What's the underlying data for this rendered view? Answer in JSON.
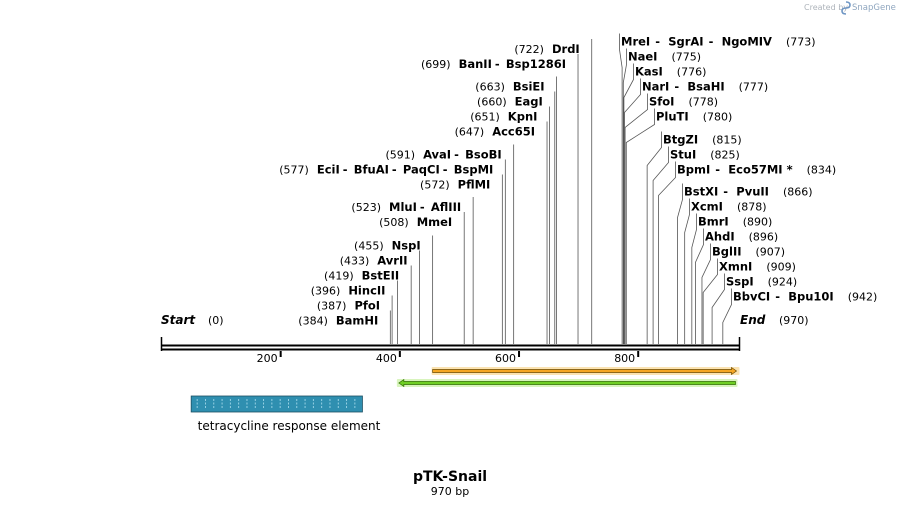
{
  "app": {
    "watermark": "Created by",
    "brand": "SnapGene",
    "brand_icon": "snapgene-logo-icon"
  },
  "plasmid": {
    "name": "pTK-Snail",
    "size_label": "970 bp",
    "length": 970
  },
  "ends": {
    "start": {
      "label": "Start",
      "pos_text": "(0)"
    },
    "end": {
      "label": "End",
      "pos_text": "(970)"
    }
  },
  "axis": {
    "ticks": [
      {
        "value": 200,
        "label": "200"
      },
      {
        "value": 400,
        "label": "400"
      },
      {
        "value": 600,
        "label": "600"
      },
      {
        "value": 800,
        "label": "800"
      }
    ]
  },
  "sites_left": [
    {
      "pos_text": "(384)",
      "names": [
        "BamHI"
      ],
      "cut": 384
    },
    {
      "pos_text": "(387)",
      "names": [
        "PfoI"
      ],
      "cut": 387
    },
    {
      "pos_text": "(396)",
      "names": [
        "HincII"
      ],
      "cut": 396
    },
    {
      "pos_text": "(419)",
      "names": [
        "BstEII"
      ],
      "cut": 419
    },
    {
      "pos_text": "(433)",
      "names": [
        "AvrII"
      ],
      "cut": 433
    },
    {
      "pos_text": "(455)",
      "names": [
        "NspI"
      ],
      "cut": 455
    },
    {
      "pos_text": "(508)",
      "names": [
        "MmeI"
      ],
      "cut": 508
    },
    {
      "pos_text": "(523)",
      "names": [
        "MluI",
        "AflIII"
      ],
      "cut": 523
    },
    {
      "pos_text": "(572)",
      "names": [
        "PflMI"
      ],
      "cut": 572
    },
    {
      "pos_text": "(577)",
      "names": [
        "EciI",
        "BfuAI",
        "PaqCI",
        "BspMI"
      ],
      "cut": 577
    },
    {
      "pos_text": "(591)",
      "names": [
        "AvaI",
        "BsoBI"
      ],
      "cut": 591
    },
    {
      "pos_text": "(647)",
      "names": [
        "Acc65I"
      ],
      "cut": 647
    },
    {
      "pos_text": "(651)",
      "names": [
        "KpnI"
      ],
      "cut": 651
    },
    {
      "pos_text": "(660)",
      "names": [
        "EagI"
      ],
      "cut": 660
    },
    {
      "pos_text": "(663)",
      "names": [
        "BsiEI"
      ],
      "cut": 663
    },
    {
      "pos_text": "(699)",
      "names": [
        "BanII",
        "Bsp1286I"
      ],
      "cut": 699
    },
    {
      "pos_text": "(722)",
      "names": [
        "DrdI"
      ],
      "cut": 722
    }
  ],
  "sites_right": [
    {
      "pos_text": "(773)",
      "names": [
        "MreI",
        "SgrAI",
        "NgoMIV"
      ],
      "cut": 773
    },
    {
      "pos_text": "(775)",
      "names": [
        "NaeI"
      ],
      "cut": 775
    },
    {
      "pos_text": "(776)",
      "names": [
        "KasI"
      ],
      "cut": 776
    },
    {
      "pos_text": "(777)",
      "names": [
        "NarI",
        "BsaHI"
      ],
      "cut": 777
    },
    {
      "pos_text": "(778)",
      "names": [
        "SfoI"
      ],
      "cut": 778
    },
    {
      "pos_text": "(780)",
      "names": [
        "PluTI"
      ],
      "cut": 780
    },
    {
      "pos_text": "(815)",
      "names": [
        "BtgZI"
      ],
      "cut": 815
    },
    {
      "pos_text": "(825)",
      "names": [
        "StuI"
      ],
      "cut": 825
    },
    {
      "pos_text": "(834)",
      "names": [
        "BpmI",
        "Eco57MI *"
      ],
      "cut": 834
    },
    {
      "pos_text": "(866)",
      "names": [
        "BstXI",
        "PvuII"
      ],
      "cut": 866
    },
    {
      "pos_text": "(878)",
      "names": [
        "XcmI"
      ],
      "cut": 878
    },
    {
      "pos_text": "(890)",
      "names": [
        "BmrI"
      ],
      "cut": 890
    },
    {
      "pos_text": "(896)",
      "names": [
        "AhdI"
      ],
      "cut": 896
    },
    {
      "pos_text": "(907)",
      "names": [
        "BglII"
      ],
      "cut": 907
    },
    {
      "pos_text": "(909)",
      "names": [
        "XmnI"
      ],
      "cut": 909
    },
    {
      "pos_text": "(924)",
      "names": [
        "SspI"
      ],
      "cut": 924
    },
    {
      "pos_text": "(942)",
      "names": [
        "BbvCI",
        "Bpu10I"
      ],
      "cut": 942
    }
  ],
  "features": [
    {
      "name": "forward-orf-arrow",
      "start": 455,
      "end": 970,
      "direction": "forward",
      "fill": "#f5a623",
      "halo": "#fbe3b2",
      "edge": "#6b4a00"
    },
    {
      "name": "reverse-orf-arrow",
      "start": 400,
      "end": 970,
      "direction": "reverse",
      "fill": "#6fcf24",
      "halo": "#d8f4bd",
      "edge": "#2f6e00"
    },
    {
      "name": "tetracycline-response-element",
      "label": "tetracycline response element",
      "start": 80,
      "end": 354,
      "fill": "#2f8fb0"
    }
  ],
  "colors": {
    "backbone": "#000000",
    "leader": "#555555",
    "watermark": "#aeb4bb"
  }
}
